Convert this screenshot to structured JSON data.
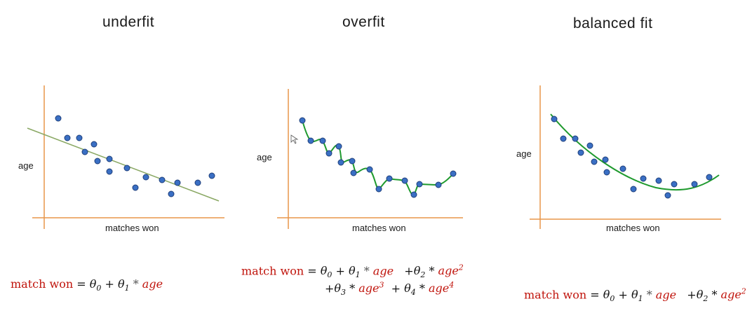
{
  "panels": [
    {
      "title": "underfit",
      "xlabel": "matches won",
      "ylabel": "age",
      "formula": {
        "lhs": "match won",
        "line1": [
          "θ0",
          "θ1 * age"
        ]
      }
    },
    {
      "title": "overfit",
      "xlabel": "matches won",
      "ylabel": "age",
      "formula": {
        "lhs": "match won",
        "line1": [
          "θ0",
          "θ1 * age",
          "θ2 * age^2"
        ],
        "line2": [
          "θ3 * age^3",
          "θ4 * age^4"
        ]
      }
    },
    {
      "title": "balanced fit",
      "xlabel": "matches won",
      "ylabel": "age",
      "formula": {
        "lhs": "match won",
        "line1": [
          "θ0",
          "θ1 * age",
          "θ2 * age^2"
        ]
      }
    }
  ],
  "colors": {
    "axis": "#e8964a",
    "points": "#3a6fc4",
    "point_edge": "#1f3f7a",
    "underfit_line": "#8aa864",
    "fit_curve": "#1f9a2e",
    "formula_red": "#c0140c"
  },
  "symbols": {
    "eq": "=",
    "plus": "+",
    "theta": "θ",
    "star": "*",
    "age": "age"
  }
}
